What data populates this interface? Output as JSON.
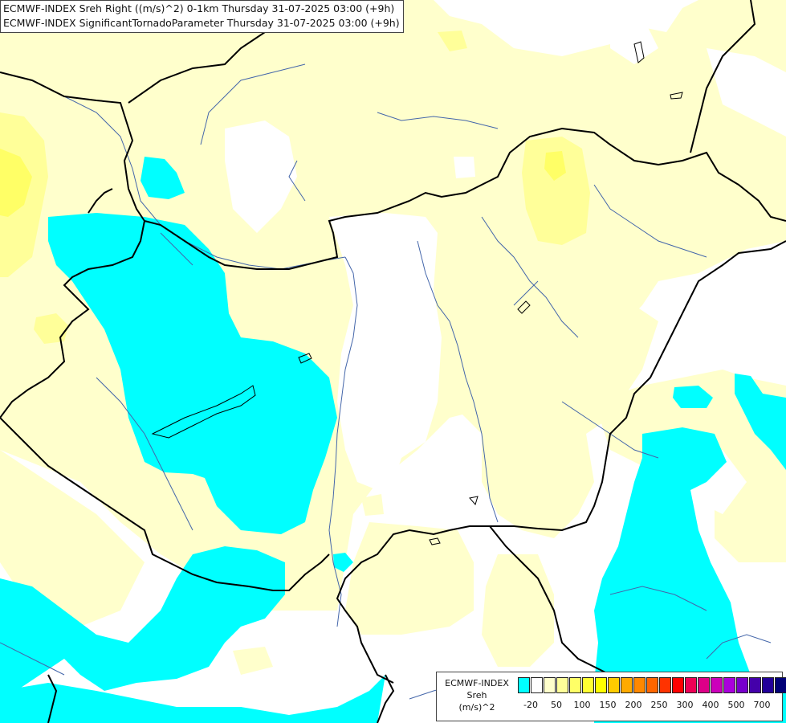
{
  "title": {
    "line1": "ECMWF-INDEX Sreh Right ((m/s)^2) 0-1km Thursday 31-07-2025 03:00 (+9h)",
    "line2": "ECMWF-INDEX SignificantTornadoParameter Thursday 31-07-2025 03:00 (+9h)"
  },
  "legend": {
    "line1": "ECMWF-INDEX",
    "line2": "Sreh",
    "line3": "(m/s)^2",
    "colors": [
      "#00ffff",
      "#ffffff",
      "#ffffcc",
      "#ffff99",
      "#ffff66",
      "#ffff33",
      "#ffff00",
      "#ffcc00",
      "#ffaa00",
      "#ff8800",
      "#ff6600",
      "#ff3300",
      "#ff0000",
      "#ee0055",
      "#dd0088",
      "#cc00bb",
      "#aa00dd",
      "#7700cc",
      "#4400aa",
      "#220099",
      "#000077"
    ],
    "ticks": [
      "-20",
      "50",
      "100",
      "150",
      "200",
      "250",
      "300",
      "400",
      "500",
      "700"
    ]
  },
  "map": {
    "fill_colors": {
      "background": "#ffffff",
      "cyan": "#00ffff",
      "pale_yellow": "#ffffcc",
      "light_yellow": "#ffff99",
      "yellow": "#ffff66",
      "bright_yellow": "#ffff00"
    },
    "border_color": "#000000",
    "river_color": "#4466aa"
  }
}
